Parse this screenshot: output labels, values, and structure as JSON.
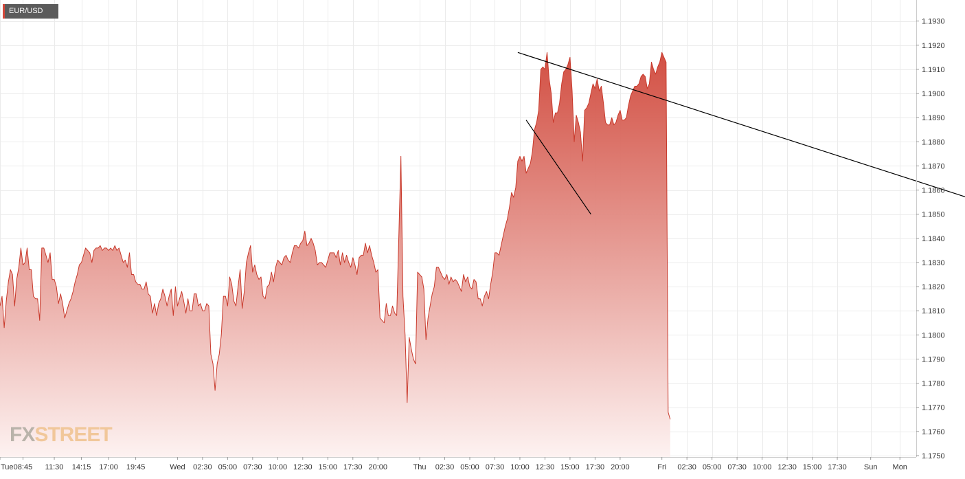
{
  "symbol": "EUR/USD",
  "logo": {
    "part1": "FX",
    "part2": "STREET"
  },
  "colors": {
    "line": "#c8392b",
    "fill_top": "#d0473a",
    "fill_bottom": "#fdf2f1",
    "grid": "#ebebeb",
    "trendline": "#000000"
  },
  "chart_data": {
    "type": "area",
    "title": "",
    "xlabel": "",
    "ylabel": "",
    "ylim": [
      1.175,
      1.1935
    ],
    "y_ticks": [
      "1.1930",
      "1.1920",
      "1.1910",
      "1.1900",
      "1.1890",
      "1.1880",
      "1.1870",
      "1.1860",
      "1.1850",
      "1.1840",
      "1.1830",
      "1.1820",
      "1.1810",
      "1.1800",
      "1.1790",
      "1.1780",
      "1.1770",
      "1.1760",
      "1.1750"
    ],
    "x_ticks": [
      "Tue",
      "08:45",
      "11:30",
      "14:15",
      "17:00",
      "19:45",
      "Wed",
      "02:30",
      "05:00",
      "07:30",
      "10:00",
      "12:30",
      "15:00",
      "17:30",
      "20:00",
      "Thu",
      "02:30",
      "05:00",
      "07:30",
      "10:00",
      "12:30",
      "15:00",
      "17:30",
      "20:00",
      "Fri",
      "02:30",
      "05:00",
      "07:30",
      "10:00",
      "12:30",
      "15:00",
      "17:30",
      "Sun",
      "Mon"
    ],
    "x_tick_index": [
      0,
      11,
      26,
      39,
      52,
      65,
      85,
      97,
      109,
      121,
      133,
      145,
      157,
      169,
      181,
      201,
      213,
      225,
      237,
      249,
      261,
      273,
      285,
      297,
      317,
      329,
      341,
      353,
      365,
      377,
      389,
      401,
      417,
      431
    ],
    "series": [
      {
        "values": [
          1.1812,
          1.1816,
          1.1803,
          1.1814,
          1.1822,
          1.1827,
          1.1825,
          1.1812,
          1.1823,
          1.1828,
          1.1836,
          1.1829,
          1.183,
          1.1836,
          1.1827,
          1.1827,
          1.1816,
          1.1815,
          1.1815,
          1.1806,
          1.1836,
          1.1836,
          1.1833,
          1.183,
          1.1834,
          1.1823,
          1.1823,
          1.182,
          1.1813,
          1.1817,
          1.1813,
          1.1807,
          1.181,
          1.1813,
          1.1815,
          1.1818,
          1.1822,
          1.1825,
          1.1829,
          1.183,
          1.1833,
          1.1836,
          1.1835,
          1.1834,
          1.183,
          1.1835,
          1.1836,
          1.1836,
          1.1837,
          1.1835,
          1.1836,
          1.1836,
          1.1835,
          1.1836,
          1.1835,
          1.1837,
          1.1835,
          1.1836,
          1.1833,
          1.183,
          1.1831,
          1.1828,
          1.1834,
          1.1825,
          1.1825,
          1.1822,
          1.1821,
          1.1821,
          1.1819,
          1.1819,
          1.1822,
          1.1817,
          1.1816,
          1.1809,
          1.1813,
          1.1808,
          1.1813,
          1.1815,
          1.1819,
          1.1816,
          1.1812,
          1.1816,
          1.1819,
          1.1808,
          1.182,
          1.1812,
          1.1815,
          1.1818,
          1.1814,
          1.1809,
          1.1815,
          1.181,
          1.181,
          1.1817,
          1.1817,
          1.1812,
          1.1813,
          1.181,
          1.181,
          1.1813,
          1.1812,
          1.1792,
          1.1788,
          1.1777,
          1.1788,
          1.1792,
          1.18,
          1.1816,
          1.1816,
          1.1812,
          1.1824,
          1.1821,
          1.1814,
          1.1812,
          1.182,
          1.1827,
          1.1811,
          1.1818,
          1.183,
          1.1834,
          1.1837,
          1.1826,
          1.1829,
          1.1825,
          1.1823,
          1.1824,
          1.1816,
          1.1815,
          1.182,
          1.1821,
          1.1826,
          1.1822,
          1.1828,
          1.1831,
          1.183,
          1.1829,
          1.1832,
          1.1833,
          1.1831,
          1.183,
          1.1834,
          1.1837,
          1.1837,
          1.1836,
          1.1838,
          1.1839,
          1.1843,
          1.1837,
          1.1838,
          1.184,
          1.1838,
          1.1835,
          1.1829,
          1.183,
          1.183,
          1.1829,
          1.1828,
          1.1831,
          1.1834,
          1.1834,
          1.1834,
          1.1832,
          1.1835,
          1.1829,
          1.1834,
          1.183,
          1.1833,
          1.183,
          1.1828,
          1.1832,
          1.1829,
          1.1825,
          1.1832,
          1.1833,
          1.1833,
          1.1838,
          1.1834,
          1.1837,
          1.1833,
          1.183,
          1.1826,
          1.1827,
          1.1807,
          1.1806,
          1.1805,
          1.1813,
          1.1808,
          1.1808,
          1.1812,
          1.1809,
          1.1808,
          1.184,
          1.1874,
          1.1816,
          1.18,
          1.1772,
          1.1799,
          1.1794,
          1.179,
          1.1788,
          1.1826,
          1.1825,
          1.1824,
          1.1819,
          1.1798,
          1.1807,
          1.1812,
          1.1817,
          1.182,
          1.1828,
          1.1828,
          1.1826,
          1.1824,
          1.1823,
          1.1825,
          1.1821,
          1.1824,
          1.1822,
          1.1823,
          1.1822,
          1.182,
          1.1818,
          1.1825,
          1.1822,
          1.1824,
          1.182,
          1.1819,
          1.1823,
          1.1822,
          1.1815,
          1.1815,
          1.1812,
          1.1816,
          1.1818,
          1.1815,
          1.1821,
          1.1826,
          1.1834,
          1.1834,
          1.1833,
          1.1837,
          1.1841,
          1.1845,
          1.1848,
          1.1853,
          1.1859,
          1.1857,
          1.1861,
          1.1872,
          1.1874,
          1.1872,
          1.1874,
          1.1867,
          1.1869,
          1.1871,
          1.1876,
          1.1885,
          1.1888,
          1.1893,
          1.191,
          1.1911,
          1.191,
          1.1917,
          1.1906,
          1.19,
          1.1888,
          1.1892,
          1.1892,
          1.1896,
          1.1904,
          1.1909,
          1.191,
          1.1912,
          1.1915,
          1.1901,
          1.188,
          1.1891,
          1.1888,
          1.1884,
          1.1872,
          1.1893,
          1.1894,
          1.1896,
          1.19,
          1.1904,
          1.1902,
          1.1906,
          1.1901,
          1.1903,
          1.1896,
          1.1888,
          1.1887,
          1.1887,
          1.189,
          1.1887,
          1.1888,
          1.1891,
          1.1893,
          1.1889,
          1.1889,
          1.189,
          1.1895,
          1.1899,
          1.1901,
          1.1903,
          1.1903,
          1.1904,
          1.1907,
          1.1908,
          1.1907,
          1.1902,
          1.1904,
          1.1913,
          1.191,
          1.1908,
          1.1911,
          1.1913,
          1.1917,
          1.1915,
          1.1913,
          1.1768,
          1.1765
        ]
      }
    ],
    "trendlines": [
      {
        "from": [
          248,
          1.1917
        ],
        "to": [
          291,
          1.1905
        ]
      },
      {
        "from": [
          252,
          1.1889
        ],
        "to": [
          283,
          1.185
        ]
      }
    ],
    "grid": true,
    "legend": "none"
  }
}
